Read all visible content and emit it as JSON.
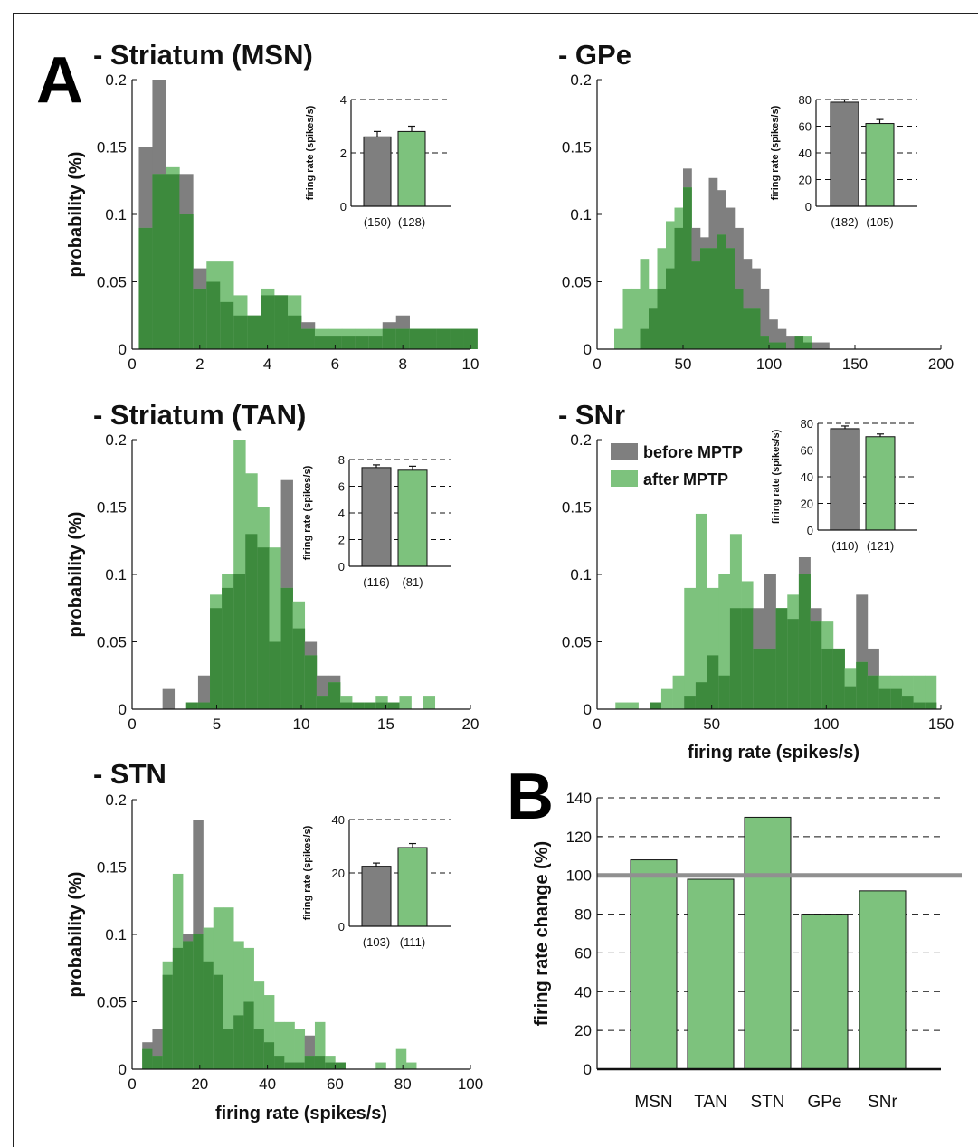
{
  "colors": {
    "before": "#7f7f7f",
    "after": "#7dc27d",
    "overlap": "#3d8a3d",
    "ref_line": "#909090"
  },
  "panel_letters": {
    "a": "A",
    "b": "B"
  },
  "legend": {
    "before": "before MPTP",
    "after": "after MPTP"
  },
  "chart_data": [
    {
      "id": "msn",
      "type": "bar",
      "title": "- Striatum (MSN)",
      "xlabel": "",
      "ylabel": "probability (%)",
      "xlim": [
        0,
        10
      ],
      "ylim": [
        0,
        0.2
      ],
      "xticks": [
        "0",
        "2",
        "4",
        "6",
        "8",
        "10"
      ],
      "yticks": [
        "0",
        "0.05",
        "0.1",
        "0.15",
        "0.2"
      ],
      "bin_start": 0.2,
      "bin_width": 0.4,
      "series": [
        {
          "name": "before MPTP",
          "values": [
            0.15,
            0.2,
            0.13,
            0.13,
            0.06,
            0.05,
            0.035,
            0.025,
            0.025,
            0.04,
            0.04,
            0.025,
            0.02,
            0.01,
            0.01,
            0.01,
            0.01,
            0.01,
            0.02,
            0.025,
            0.015,
            0.015,
            0.015,
            0.015,
            0.015
          ]
        },
        {
          "name": "after MPTP",
          "values": [
            0.09,
            0.13,
            0.135,
            0.1,
            0.045,
            0.065,
            0.065,
            0.04,
            0.025,
            0.045,
            0.04,
            0.04,
            0.015,
            0.015,
            0.015,
            0.015,
            0.015,
            0.015,
            0.015,
            0.015,
            0.015,
            0.015,
            0.015,
            0.015,
            0.015
          ]
        }
      ],
      "inset": {
        "ylabel": "firing rate (spikes/s)",
        "ylim": [
          0,
          4
        ],
        "yticks": [
          "0",
          "2",
          "4"
        ],
        "values": [
          2.6,
          2.8
        ],
        "errors": [
          0.2,
          0.2
        ],
        "counts": [
          "(150)",
          "(128)"
        ]
      }
    },
    {
      "id": "gpe",
      "type": "bar",
      "title": "- GPe",
      "xlabel": "",
      "ylabel": "",
      "xlim": [
        0,
        200
      ],
      "ylim": [
        0,
        0.2
      ],
      "xticks": [
        "0",
        "50",
        "100",
        "150",
        "200"
      ],
      "yticks": [
        "0",
        "0.05",
        "0.1",
        "0.15",
        "0.2"
      ],
      "bin_start": 10,
      "bin_width": 5,
      "series": [
        {
          "name": "before MPTP",
          "values": [
            0,
            0,
            0,
            0.015,
            0.03,
            0.045,
            0.06,
            0.09,
            0.134,
            0.09,
            0.083,
            0.127,
            0.118,
            0.105,
            0.09,
            0.067,
            0.06,
            0.045,
            0.022,
            0.015,
            0.01,
            0.01,
            0.005,
            0.005,
            0.005,
            0,
            0,
            0,
            0,
            0
          ]
        },
        {
          "name": "after MPTP",
          "values": [
            0.015,
            0.045,
            0.045,
            0.067,
            0.045,
            0.075,
            0.095,
            0.105,
            0.12,
            0.065,
            0.075,
            0.075,
            0.085,
            0.075,
            0.045,
            0.03,
            0.03,
            0.01,
            0.005,
            0.005,
            0,
            0.01,
            0.01,
            0,
            0,
            0,
            0,
            0,
            0,
            0
          ]
        }
      ],
      "inset": {
        "ylabel": "firing rate (spikes/s)",
        "ylim": [
          0,
          80
        ],
        "yticks": [
          "0",
          "20",
          "40",
          "60",
          "80"
        ],
        "values": [
          78,
          62
        ],
        "errors": [
          2,
          3
        ],
        "counts": [
          "(182)",
          "(105)"
        ]
      }
    },
    {
      "id": "tan",
      "type": "bar",
      "title": "- Striatum (TAN)",
      "xlabel": "",
      "ylabel": "probability (%)",
      "xlim": [
        0,
        20
      ],
      "ylim": [
        0,
        0.2
      ],
      "xticks": [
        "0",
        "5",
        "10",
        "15",
        "20"
      ],
      "yticks": [
        "0",
        "0.05",
        "0.1",
        "0.15",
        "0.2"
      ],
      "bin_start": 1.8,
      "bin_width": 0.7,
      "series": [
        {
          "name": "before MPTP",
          "values": [
            0.015,
            0,
            0.005,
            0.025,
            0.075,
            0.09,
            0.1,
            0.13,
            0.12,
            0.05,
            0.17,
            0.06,
            0.05,
            0.025,
            0.025,
            0.005,
            0.005,
            0.005,
            0.005,
            0.005,
            0,
            0,
            0,
            0,
            0
          ]
        },
        {
          "name": "after MPTP",
          "values": [
            0,
            0,
            0.005,
            0.005,
            0.085,
            0.1,
            0.2,
            0.175,
            0.15,
            0.12,
            0.09,
            0.08,
            0.04,
            0.01,
            0.02,
            0.01,
            0.005,
            0.005,
            0.01,
            0.005,
            0.01,
            0,
            0.01,
            0,
            0
          ]
        }
      ],
      "inset": {
        "ylabel": "firing rate (spikes/s)",
        "ylim": [
          0,
          8
        ],
        "yticks": [
          "0",
          "2",
          "4",
          "6",
          "8"
        ],
        "values": [
          7.4,
          7.2
        ],
        "errors": [
          0.2,
          0.3
        ],
        "counts": [
          "(116)",
          "(81)"
        ]
      }
    },
    {
      "id": "snr",
      "type": "bar",
      "title": "- SNr",
      "xlabel": "firing rate (spikes/s)",
      "ylabel": "",
      "xlim": [
        0,
        150
      ],
      "ylim": [
        0,
        0.2
      ],
      "xticks": [
        "0",
        "50",
        "100",
        "150"
      ],
      "yticks": [
        "0",
        "0.05",
        "0.1",
        "0.15",
        "0.2"
      ],
      "bin_start": 8,
      "bin_width": 5,
      "series": [
        {
          "name": "before MPTP",
          "values": [
            0,
            0,
            0,
            0.005,
            0,
            0,
            0.01,
            0.02,
            0.04,
            0.025,
            0.075,
            0.075,
            0.075,
            0.1,
            0.075,
            0.067,
            0.13,
            0.075,
            0.045,
            0.045,
            0.017,
            0.085,
            0.045,
            0.015,
            0.015,
            0.01,
            0.005,
            0.005
          ]
        },
        {
          "name": "after MPTP",
          "values": [
            0.005,
            0.005,
            0,
            0.005,
            0.015,
            0.025,
            0.09,
            0.145,
            0.09,
            0.1,
            0.13,
            0.095,
            0.045,
            0.045,
            0.075,
            0.085,
            0.1,
            0.065,
            0.065,
            0.045,
            0.03,
            0.035,
            0.025,
            0.025,
            0.025,
            0.025,
            0.025,
            0.025
          ]
        }
      ],
      "inset": {
        "ylabel": "firing rate (spikes/s)",
        "ylim": [
          0,
          80
        ],
        "yticks": [
          "0",
          "20",
          "40",
          "60",
          "80"
        ],
        "values": [
          76,
          70
        ],
        "errors": [
          2,
          2
        ],
        "counts": [
          "(110)",
          "(121)"
        ]
      }
    },
    {
      "id": "stn",
      "type": "bar",
      "title": "- STN",
      "xlabel": "firing rate (spikes/s)",
      "ylabel": "probability (%)",
      "xlim": [
        0,
        100
      ],
      "ylim": [
        0,
        0.2
      ],
      "xticks": [
        "0",
        "20",
        "40",
        "60",
        "80",
        "100"
      ],
      "yticks": [
        "0",
        "0.05",
        "0.1",
        "0.15",
        "0.2"
      ],
      "bin_start": 3,
      "bin_width": 3,
      "series": [
        {
          "name": "before MPTP",
          "values": [
            0.02,
            0.03,
            0.07,
            0.09,
            0.1,
            0.185,
            0.08,
            0.07,
            0.03,
            0.04,
            0.05,
            0.03,
            0.02,
            0.01,
            0.005,
            0.005,
            0.025,
            0.01,
            0.005,
            0.005,
            0,
            0,
            0,
            0,
            0,
            0,
            0,
            0,
            0
          ]
        },
        {
          "name": "after MPTP",
          "values": [
            0.015,
            0.01,
            0.08,
            0.145,
            0.095,
            0.1,
            0.105,
            0.12,
            0.12,
            0.095,
            0.09,
            0.065,
            0.055,
            0.035,
            0.035,
            0.03,
            0.01,
            0.035,
            0.01,
            0.005,
            0,
            0,
            0,
            0.005,
            0,
            0.015,
            0.005,
            0,
            0
          ]
        }
      ],
      "inset": {
        "ylabel": "firing rate (spikes/s)",
        "ylim": [
          0,
          40
        ],
        "yticks": [
          "0",
          "20",
          "40"
        ],
        "values": [
          22.5,
          29.5
        ],
        "errors": [
          1.2,
          1.5
        ],
        "counts": [
          "(103)",
          "(111)"
        ]
      }
    },
    {
      "id": "change",
      "type": "bar",
      "title": "",
      "xlabel": "",
      "ylabel": "firing rate change (%)",
      "ylim": [
        0,
        140
      ],
      "yticks": [
        "0",
        "20",
        "40",
        "60",
        "80",
        "100",
        "120",
        "140"
      ],
      "categories": [
        "MSN",
        "TAN",
        "STN",
        "GPe",
        "SNr"
      ],
      "values": [
        108,
        98,
        130,
        80,
        92
      ],
      "reference_line": 100
    }
  ]
}
